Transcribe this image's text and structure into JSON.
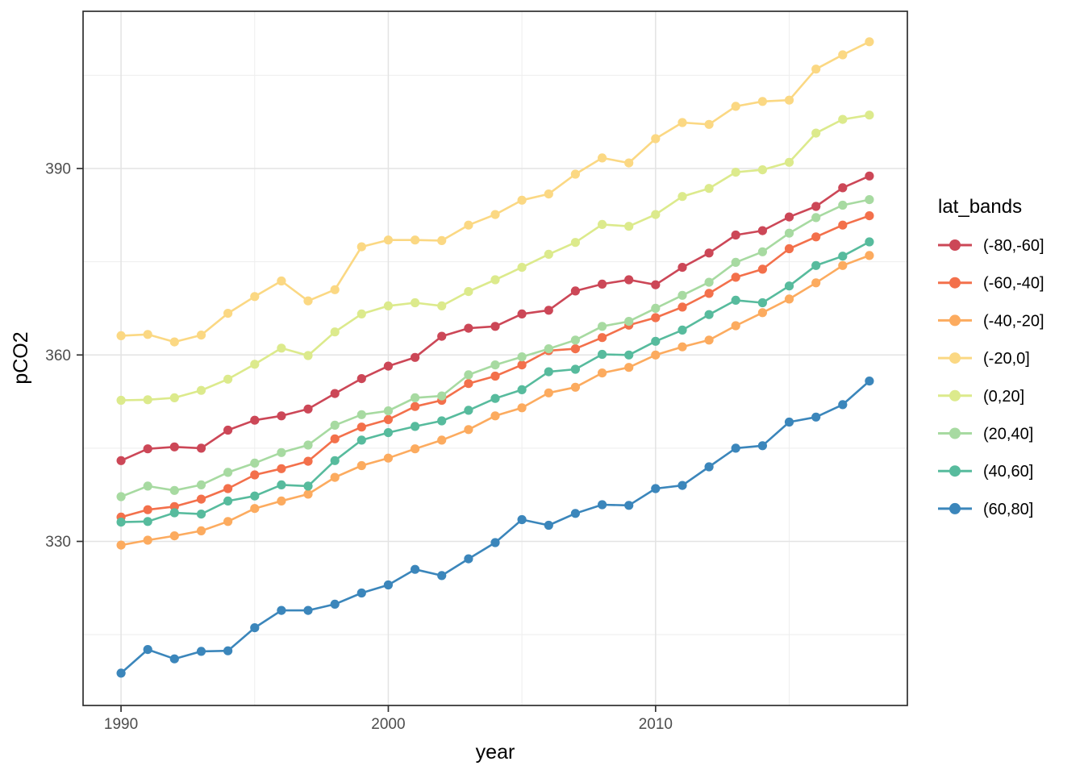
{
  "window_background": "#ffffff",
  "panel": {
    "background": "#ffffff",
    "border_color": "#2e2e2e",
    "grid_major_color": "#e3e3e3",
    "grid_minor_color": "#eeeeee",
    "tick_mark_color": "#333333",
    "tick_label_color": "#4d4d4d",
    "axis_title_color": "#000000",
    "legend_text_color": "#000000"
  },
  "chart_data": {
    "type": "line",
    "title": "",
    "xlabel": "year",
    "ylabel": "pCO2",
    "legend_title": "lat_bands",
    "legend_position": "right",
    "grid": true,
    "xlim": [
      1988.58,
      2019.42
    ],
    "ylim": [
      303.6,
      415.3
    ],
    "x_ticks": [
      1990,
      2000,
      2010
    ],
    "x_minor_ticks": [
      1995,
      2005,
      2015
    ],
    "y_ticks": [
      330,
      360,
      390
    ],
    "y_minor_ticks": [
      315,
      345,
      375,
      405
    ],
    "x": [
      1990,
      1991,
      1992,
      1993,
      1994,
      1995,
      1996,
      1997,
      1998,
      1999,
      2000,
      2001,
      2002,
      2003,
      2004,
      2005,
      2006,
      2007,
      2008,
      2009,
      2010,
      2011,
      2012,
      2013,
      2014,
      2015,
      2016,
      2017,
      2018
    ],
    "series": [
      {
        "name": "(-80,-60]",
        "color": "#cc4757",
        "values": [
          343.0,
          344.9,
          345.2,
          345.0,
          347.9,
          349.5,
          350.2,
          351.3,
          353.8,
          356.2,
          358.2,
          359.6,
          363.0,
          364.3,
          364.6,
          366.6,
          367.2,
          370.3,
          371.4,
          372.1,
          371.3,
          374.1,
          376.4,
          379.3,
          380.0,
          382.2,
          383.9,
          386.9,
          388.8
        ]
      },
      {
        "name": "(-60,-40]",
        "color": "#f3704b",
        "values": [
          333.9,
          335.1,
          335.6,
          336.8,
          338.5,
          340.7,
          341.7,
          342.9,
          346.5,
          348.4,
          349.6,
          351.7,
          352.7,
          355.4,
          356.6,
          358.4,
          360.7,
          361.0,
          362.8,
          364.8,
          366.0,
          367.7,
          369.9,
          372.5,
          373.8,
          377.1,
          379.0,
          380.9,
          382.4
        ]
      },
      {
        "name": "(-40,-20]",
        "color": "#fcab5f",
        "values": [
          329.4,
          330.2,
          330.9,
          331.7,
          333.2,
          335.3,
          336.5,
          337.6,
          340.3,
          342.2,
          343.4,
          344.9,
          346.3,
          348.0,
          350.2,
          351.5,
          353.9,
          354.8,
          357.1,
          358.0,
          360.0,
          361.3,
          362.4,
          364.7,
          366.8,
          369.0,
          371.6,
          374.4,
          376.0
        ]
      },
      {
        "name": "(-20,0]",
        "color": "#fbd883",
        "values": [
          363.1,
          363.3,
          362.1,
          363.2,
          366.7,
          369.4,
          371.9,
          368.7,
          370.5,
          377.4,
          378.5,
          378.5,
          378.4,
          380.9,
          382.6,
          384.9,
          385.9,
          389.1,
          391.7,
          390.9,
          394.8,
          397.4,
          397.1,
          400.0,
          400.8,
          401.0,
          406.0,
          408.3,
          410.4
        ]
      },
      {
        "name": "(0,20]",
        "color": "#dcea8c",
        "values": [
          352.7,
          352.8,
          353.1,
          354.3,
          356.1,
          358.5,
          361.1,
          359.9,
          363.7,
          366.6,
          367.9,
          368.4,
          367.9,
          370.2,
          372.1,
          374.1,
          376.2,
          378.1,
          381.0,
          380.7,
          382.6,
          385.5,
          386.8,
          389.4,
          389.8,
          391.0,
          395.7,
          397.9,
          398.6
        ]
      },
      {
        "name": "(20,40]",
        "color": "#a7daa1",
        "values": [
          337.2,
          338.9,
          338.2,
          339.1,
          341.1,
          342.6,
          344.3,
          345.5,
          348.7,
          350.4,
          351.0,
          353.1,
          353.4,
          356.8,
          358.4,
          359.7,
          361.0,
          362.4,
          364.6,
          365.4,
          367.5,
          369.6,
          371.7,
          374.9,
          376.6,
          379.6,
          382.1,
          384.1,
          385.0
        ]
      },
      {
        "name": "(40,60]",
        "color": "#57bb9d",
        "values": [
          333.1,
          333.2,
          334.6,
          334.4,
          336.5,
          337.3,
          339.1,
          338.9,
          343.0,
          346.3,
          347.5,
          348.5,
          349.4,
          351.1,
          353.0,
          354.4,
          357.3,
          357.7,
          360.1,
          360.0,
          362.2,
          364.0,
          366.5,
          368.8,
          368.4,
          371.1,
          374.4,
          375.9,
          378.2
        ]
      },
      {
        "name": "(60,80]",
        "color": "#3b86bb",
        "values": [
          308.8,
          312.6,
          311.1,
          312.3,
          312.4,
          316.1,
          318.9,
          318.9,
          319.9,
          321.7,
          323.0,
          325.5,
          324.5,
          327.2,
          329.8,
          333.5,
          332.6,
          334.5,
          335.9,
          335.8,
          338.5,
          339.0,
          342.0,
          345.0,
          345.4,
          349.2,
          350.0,
          352.0,
          355.8
        ]
      }
    ]
  }
}
